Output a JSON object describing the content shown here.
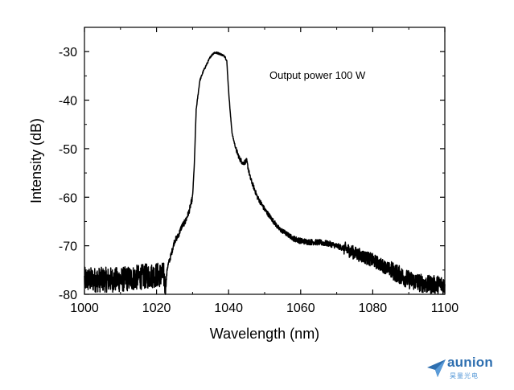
{
  "colors": {
    "line": "#000000",
    "axis": "#000000",
    "logo": "#2e6fb0"
  },
  "chart_data": {
    "type": "line",
    "title": "",
    "xlabel": "Wavelength (nm)",
    "ylabel": "Intensity (dB)",
    "xlim": [
      1000,
      1100
    ],
    "ylim": [
      -80,
      -25
    ],
    "xticks": [
      1000,
      1020,
      1040,
      1060,
      1080,
      1100
    ],
    "yticks": [
      -80,
      -70,
      -60,
      -50,
      -40,
      -30
    ],
    "grid": false,
    "annotation": "Output power 100 W",
    "series": [
      {
        "x": [
          1000,
          1005,
          1010,
          1015,
          1020,
          1022,
          1022.5,
          1023,
          1024,
          1025,
          1026,
          1027,
          1028,
          1029,
          1030,
          1030.5,
          1031,
          1032,
          1033,
          1034,
          1035,
          1036,
          1037,
          1038,
          1039,
          1039.5,
          1040,
          1040.5,
          1041,
          1042,
          1043,
          1044,
          1045,
          1046,
          1047,
          1048,
          1050,
          1052,
          1054,
          1056,
          1058,
          1060,
          1062,
          1065,
          1068,
          1072,
          1075,
          1080,
          1085,
          1090,
          1095,
          1100
        ],
        "y": [
          -77,
          -77,
          -77,
          -76.5,
          -76,
          -76,
          -79,
          -74.5,
          -72,
          -69,
          -68,
          -66,
          -65,
          -63,
          -60,
          -53,
          -42,
          -36,
          -34,
          -32.5,
          -31,
          -30.2,
          -30.3,
          -30.6,
          -31,
          -32,
          -38,
          -43,
          -47,
          -50,
          -52,
          -53,
          -52.5,
          -56,
          -58,
          -60,
          -62.5,
          -64.5,
          -66.5,
          -67.5,
          -68.5,
          -69,
          -69.2,
          -69.3,
          -69.6,
          -70.5,
          -71.5,
          -73,
          -75,
          -77,
          -78,
          -78
        ]
      }
    ]
  },
  "logo": {
    "name": "aunion",
    "subtitle": "昊量光电"
  }
}
